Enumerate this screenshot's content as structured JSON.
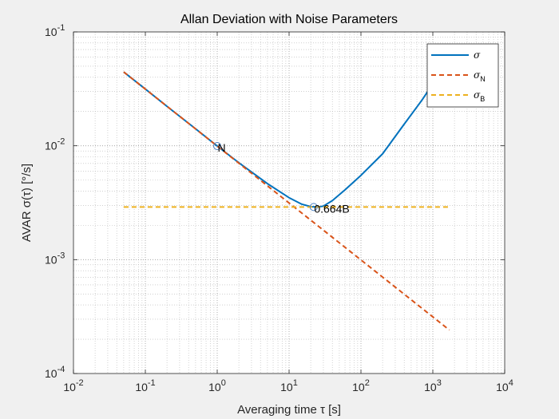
{
  "chart_data": {
    "type": "line",
    "title": "Allan Deviation with Noise Parameters",
    "xlabel": "Averaging time τ [s]",
    "ylabel": "AVAR σ(τ) [°/s]",
    "xscale": "log",
    "yscale": "log",
    "xlim": [
      0.01,
      10000
    ],
    "ylim": [
      0.0001,
      0.1
    ],
    "grid": true,
    "minor_grid": true,
    "legend_position": "top-right",
    "x_ticks": [
      {
        "value": 0.01,
        "base": "10",
        "exp": "-2"
      },
      {
        "value": 0.1,
        "base": "10",
        "exp": "-1"
      },
      {
        "value": 1,
        "base": "10",
        "exp": "0"
      },
      {
        "value": 10,
        "base": "10",
        "exp": "1"
      },
      {
        "value": 100,
        "base": "10",
        "exp": "2"
      },
      {
        "value": 1000,
        "base": "10",
        "exp": "3"
      },
      {
        "value": 10000,
        "base": "10",
        "exp": "4"
      }
    ],
    "y_ticks": [
      {
        "value": 0.0001,
        "base": "10",
        "exp": "-4"
      },
      {
        "value": 0.001,
        "base": "10",
        "exp": "-3"
      },
      {
        "value": 0.01,
        "base": "10",
        "exp": "-2"
      },
      {
        "value": 0.1,
        "base": "10",
        "exp": "-1"
      }
    ],
    "series": [
      {
        "name": "σ",
        "label_main": "σ",
        "label_sub": "",
        "color": "#0072bd",
        "dash": "solid",
        "x": [
          0.05,
          0.1,
          0.2,
          0.5,
          1,
          2,
          5,
          10,
          15,
          20,
          25,
          30,
          40,
          60,
          100,
          200,
          400,
          700,
          1000,
          1400,
          1700
        ],
        "y": [
          0.0445,
          0.0315,
          0.0222,
          0.0141,
          0.00995,
          0.0071,
          0.00465,
          0.0035,
          0.00307,
          0.00292,
          0.0029,
          0.00295,
          0.0033,
          0.0041,
          0.0055,
          0.0085,
          0.0155,
          0.025,
          0.035,
          0.05,
          0.072
        ]
      },
      {
        "name": "σN",
        "label_main": "σ",
        "label_sub": "N",
        "color": "#d95319",
        "dash": "dashed",
        "x": [
          0.05,
          1700
        ],
        "y": [
          0.0445,
          0.000241
        ]
      },
      {
        "name": "σB",
        "label_main": "σ",
        "label_sub": "B",
        "color": "#edb120",
        "dash": "dashed",
        "x": [
          0.05,
          1700
        ],
        "y": [
          0.0029,
          0.0029
        ]
      }
    ],
    "annotations": [
      {
        "text": "N",
        "x": 1,
        "y": 0.00995,
        "marker": "circle"
      },
      {
        "text": "0.664B",
        "x": 22,
        "y": 0.0029,
        "marker": "circle"
      }
    ]
  }
}
